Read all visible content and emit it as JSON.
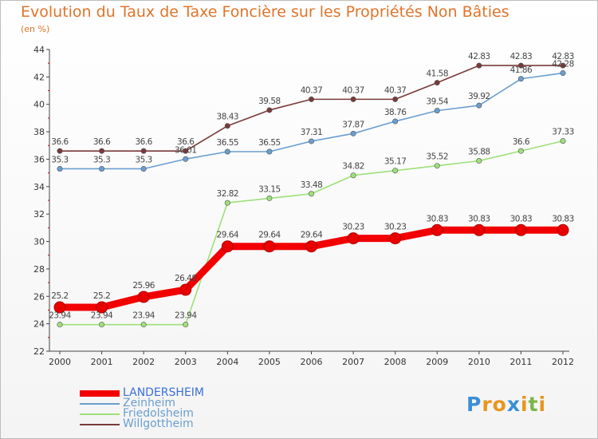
{
  "title": "Evolution du Taux de Taxe Foncière sur les Propriétés Non Bâties",
  "unit_label": "(en %)",
  "logo": {
    "letters": [
      "P",
      "r",
      "o",
      "x",
      "i",
      "t",
      "i"
    ],
    "colors": [
      "#3a8fd6",
      "#e8961e",
      "#e8961e",
      "#3a8fd6",
      "#e8961e",
      "#7ab648",
      "#e8961e"
    ]
  },
  "chart_data": {
    "type": "line",
    "x": [
      "2000",
      "2001",
      "2002",
      "2003",
      "2004",
      "2005",
      "2006",
      "2007",
      "2008",
      "2009",
      "2010",
      "2011",
      "2012"
    ],
    "ylim": [
      22,
      44
    ],
    "yticks": [
      "22",
      "24",
      "26",
      "28",
      "30",
      "32",
      "34",
      "36",
      "38",
      "40",
      "42",
      "44"
    ],
    "grid": false,
    "legend_position": "bottom-left",
    "series": [
      {
        "name": "LANDERSHEIM",
        "color": "#f20000",
        "values": [
          25.2,
          25.2,
          25.96,
          26.48,
          29.64,
          29.64,
          29.64,
          30.23,
          30.23,
          30.83,
          30.83,
          30.83,
          30.83
        ],
        "labels": [
          "25.2",
          "25.2",
          "25.96",
          "26.48",
          "29.64",
          "29.64",
          "29.64",
          "30.23",
          "30.23",
          "30.83",
          "30.83",
          "30.83",
          "30.83"
        ]
      },
      {
        "name": "Zeinheim",
        "color": "#6a9ed0",
        "values": [
          35.3,
          35.3,
          35.3,
          36.01,
          36.55,
          36.55,
          37.31,
          37.87,
          38.76,
          39.54,
          39.92,
          41.86,
          42.28
        ],
        "labels": [
          "35.3",
          "35.3",
          "35.3",
          "36.01",
          "36.55",
          "36.55",
          "37.31",
          "37.87",
          "38.76",
          "39.54",
          "39.92",
          "41.86",
          "42.28"
        ]
      },
      {
        "name": "Friedolsheim",
        "color": "#9ee07a",
        "values": [
          23.94,
          23.94,
          23.94,
          23.94,
          32.82,
          33.15,
          33.48,
          34.82,
          35.17,
          35.52,
          35.88,
          36.6,
          37.33
        ],
        "labels": [
          "23.94",
          "23.94",
          "23.94",
          "23.94",
          "32.82",
          "33.15",
          "33.48",
          "34.82",
          "35.17",
          "35.52",
          "35.88",
          "36.6",
          "37.33"
        ]
      },
      {
        "name": "Willgottheim",
        "color": "#7a3a3a",
        "values": [
          36.6,
          36.6,
          36.6,
          36.6,
          38.43,
          39.58,
          40.37,
          40.37,
          40.37,
          41.58,
          42.83,
          42.83,
          42.83
        ],
        "labels": [
          "36.6",
          "36.6",
          "36.6",
          "36.6",
          "38.43",
          "39.58",
          "40.37",
          "40.37",
          "40.37",
          "41.58",
          "42.83",
          "42.83",
          "42.83"
        ]
      }
    ]
  }
}
